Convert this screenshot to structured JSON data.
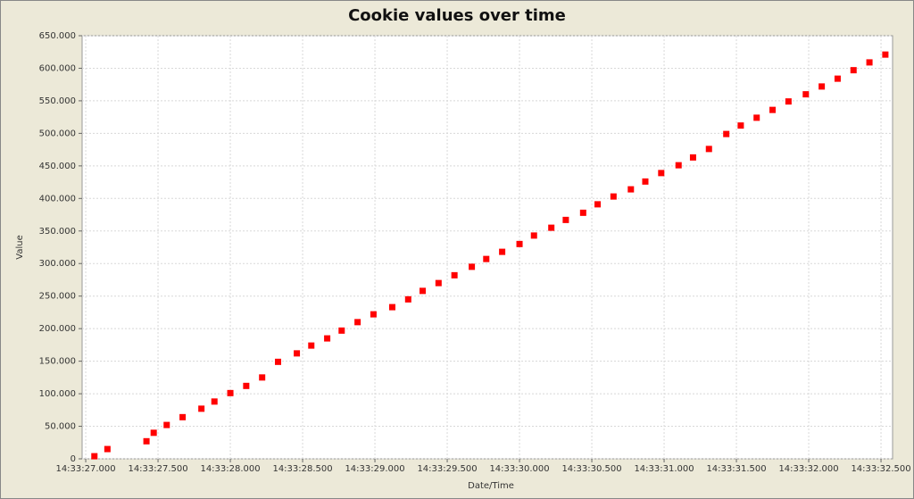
{
  "chart_data": {
    "type": "scatter",
    "title": "Cookie values over time",
    "x_label": "Date/Time",
    "y_label": "Value",
    "color": "#ff0000",
    "grid": true,
    "xlim": [
      26.975,
      32.58
    ],
    "xticks": [
      {
        "value": 27.0,
        "label": "14:33:27.000"
      },
      {
        "value": 27.5,
        "label": "14:33:27.500"
      },
      {
        "value": 28.0,
        "label": "14:33:28.000"
      },
      {
        "value": 28.5,
        "label": "14:33:28.500"
      },
      {
        "value": 29.0,
        "label": "14:33:29.000"
      },
      {
        "value": 29.5,
        "label": "14:33:29.500"
      },
      {
        "value": 30.0,
        "label": "14:33:30.000"
      },
      {
        "value": 30.5,
        "label": "14:33:30.500"
      },
      {
        "value": 31.0,
        "label": "14:33:31.000"
      },
      {
        "value": 31.5,
        "label": "14:33:31.500"
      },
      {
        "value": 32.0,
        "label": "14:33:32.000"
      },
      {
        "value": 32.5,
        "label": "14:33:32.500"
      }
    ],
    "ylim": [
      0,
      650000
    ],
    "yticks": [
      0,
      {
        "value": 50000,
        "label": "50.000"
      },
      {
        "value": 100000,
        "label": "100.000"
      },
      {
        "value": 150000,
        "label": "150.000"
      },
      {
        "value": 200000,
        "label": "200.000"
      },
      {
        "value": 250000,
        "label": "250.000"
      },
      {
        "value": 300000,
        "label": "300.000"
      },
      {
        "value": 350000,
        "label": "350.000"
      },
      {
        "value": 400000,
        "label": "400.000"
      },
      {
        "value": 450000,
        "label": "450.000"
      },
      {
        "value": 500000,
        "label": "500.000"
      },
      {
        "value": 550000,
        "label": "550.000"
      },
      {
        "value": 600000,
        "label": "600.000"
      },
      {
        "value": 650000,
        "label": "650.000"
      }
    ],
    "x": [
      27.06,
      27.15,
      27.42,
      27.47,
      27.56,
      27.67,
      27.8,
      27.89,
      28.0,
      28.11,
      28.22,
      28.33,
      28.46,
      28.56,
      28.67,
      28.77,
      28.88,
      28.99,
      29.12,
      29.23,
      29.33,
      29.44,
      29.55,
      29.67,
      29.77,
      29.88,
      30.0,
      30.1,
      30.22,
      30.32,
      30.44,
      30.54,
      30.65,
      30.77,
      30.87,
      30.98,
      31.1,
      31.2,
      31.31,
      31.43,
      31.53,
      31.64,
      31.75,
      31.86,
      31.98,
      32.09,
      32.2,
      32.31,
      32.42,
      32.53
    ],
    "values": [
      4000,
      15000,
      27000,
      40000,
      52000,
      64000,
      77000,
      88000,
      101000,
      112000,
      125000,
      149000,
      162000,
      174000,
      185000,
      197000,
      210000,
      222000,
      233000,
      245000,
      258000,
      270000,
      282000,
      295000,
      307000,
      318000,
      330000,
      343000,
      355000,
      367000,
      378000,
      391000,
      403000,
      414000,
      426000,
      439000,
      451000,
      463000,
      476000,
      499000,
      512000,
      524000,
      536000,
      549000,
      560000,
      572000,
      584000,
      597000,
      609000,
      621000
    ]
  }
}
